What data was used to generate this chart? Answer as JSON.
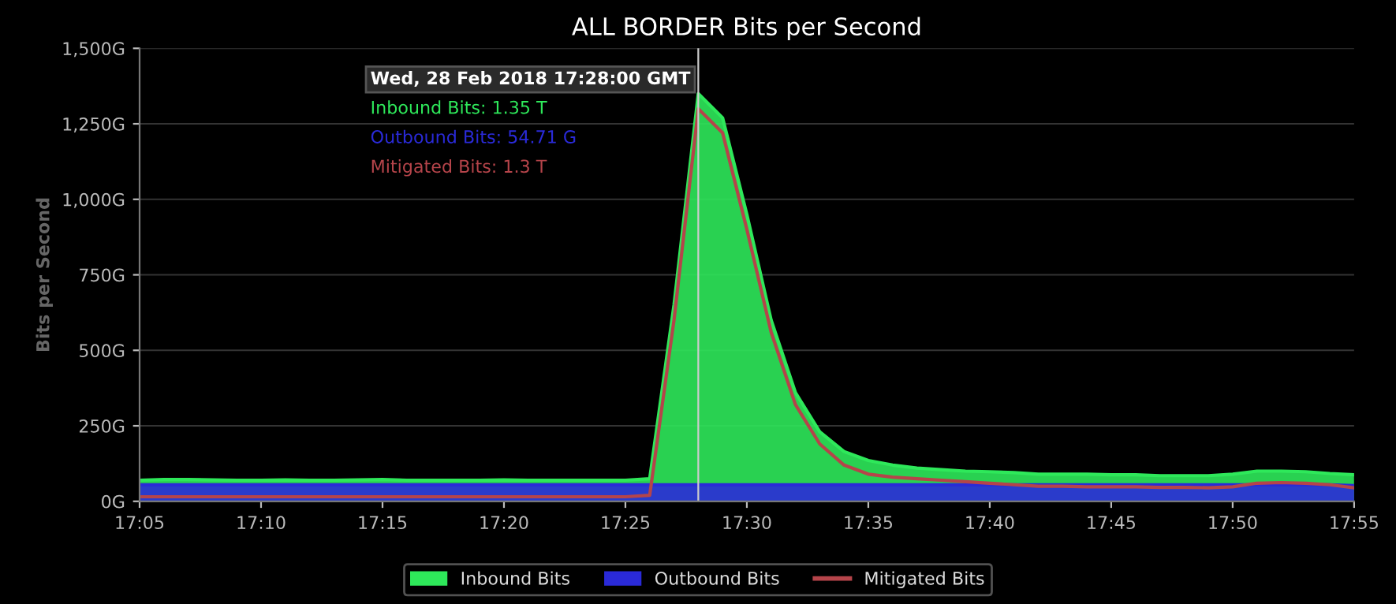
{
  "chart_data": {
    "type": "area",
    "title": "ALL BORDER Bits per Second",
    "ylabel": "Bits per Second",
    "x": [
      "2018-02-28T17:05",
      "2018-02-28T17:06",
      "2018-02-28T17:07",
      "2018-02-28T17:08",
      "2018-02-28T17:09",
      "2018-02-28T17:10",
      "2018-02-28T17:11",
      "2018-02-28T17:12",
      "2018-02-28T17:13",
      "2018-02-28T17:14",
      "2018-02-28T17:15",
      "2018-02-28T17:16",
      "2018-02-28T17:17",
      "2018-02-28T17:18",
      "2018-02-28T17:19",
      "2018-02-28T17:20",
      "2018-02-28T17:21",
      "2018-02-28T17:22",
      "2018-02-28T17:23",
      "2018-02-28T17:24",
      "2018-02-28T17:25",
      "2018-02-28T17:26",
      "2018-02-28T17:27",
      "2018-02-28T17:28",
      "2018-02-28T17:29",
      "2018-02-28T17:30",
      "2018-02-28T17:31",
      "2018-02-28T17:32",
      "2018-02-28T17:33",
      "2018-02-28T17:34",
      "2018-02-28T17:35",
      "2018-02-28T17:36",
      "2018-02-28T17:37",
      "2018-02-28T17:38",
      "2018-02-28T17:39",
      "2018-02-28T17:40",
      "2018-02-28T17:41",
      "2018-02-28T17:42",
      "2018-02-28T17:43",
      "2018-02-28T17:44",
      "2018-02-28T17:45",
      "2018-02-28T17:46",
      "2018-02-28T17:47",
      "2018-02-28T17:48",
      "2018-02-28T17:49",
      "2018-02-28T17:50",
      "2018-02-28T17:51",
      "2018-02-28T17:52",
      "2018-02-28T17:53",
      "2018-02-28T17:54",
      "2018-02-28T17:55"
    ],
    "series": [
      {
        "name": "Inbound Bits",
        "color": "#2ee85a",
        "values": [
          70,
          72,
          72,
          71,
          70,
          70,
          71,
          70,
          70,
          71,
          72,
          70,
          70,
          70,
          70,
          71,
          70,
          70,
          70,
          70,
          70,
          75,
          650,
          1350,
          1270,
          950,
          600,
          360,
          230,
          165,
          135,
          120,
          110,
          105,
          100,
          98,
          95,
          90,
          90,
          90,
          88,
          88,
          85,
          85,
          85,
          90,
          100,
          100,
          98,
          92,
          88
        ]
      },
      {
        "name": "Outbound Bits",
        "color": "#2a2ad8",
        "values": [
          55,
          55,
          55,
          55,
          55,
          55,
          55,
          55,
          55,
          55,
          55,
          55,
          55,
          55,
          55,
          55,
          55,
          55,
          55,
          55,
          55,
          55,
          55,
          55,
          55,
          55,
          55,
          55,
          55,
          55,
          55,
          55,
          55,
          55,
          55,
          55,
          55,
          55,
          55,
          55,
          55,
          55,
          55,
          55,
          55,
          55,
          55,
          55,
          55,
          55,
          52
        ]
      },
      {
        "name": "Mitigated Bits",
        "color": "#b5444a",
        "type": "line",
        "values": [
          15,
          15,
          15,
          15,
          15,
          15,
          15,
          15,
          15,
          15,
          15,
          15,
          15,
          15,
          15,
          15,
          15,
          15,
          15,
          15,
          15,
          20,
          600,
          1300,
          1220,
          900,
          560,
          320,
          190,
          120,
          90,
          80,
          75,
          70,
          65,
          60,
          55,
          50,
          50,
          48,
          48,
          48,
          46,
          46,
          45,
          48,
          60,
          62,
          60,
          55,
          45
        ]
      }
    ],
    "xlim": [
      "2018-02-28T17:05",
      "2018-02-28T17:55"
    ],
    "xticks": [
      {
        "value": "2018-02-28T17:05",
        "label": "17:05"
      },
      {
        "value": "2018-02-28T17:10",
        "label": "17:10"
      },
      {
        "value": "2018-02-28T17:15",
        "label": "17:15"
      },
      {
        "value": "2018-02-28T17:20",
        "label": "17:20"
      },
      {
        "value": "2018-02-28T17:25",
        "label": "17:25"
      },
      {
        "value": "2018-02-28T17:30",
        "label": "17:30"
      },
      {
        "value": "2018-02-28T17:35",
        "label": "17:35"
      },
      {
        "value": "2018-02-28T17:40",
        "label": "17:40"
      },
      {
        "value": "2018-02-28T17:45",
        "label": "17:45"
      },
      {
        "value": "2018-02-28T17:50",
        "label": "17:50"
      },
      {
        "value": "2018-02-28T17:55",
        "label": "17:55"
      }
    ],
    "ylim": [
      0,
      1500
    ],
    "yticks": [
      {
        "value": 0,
        "label": "0G"
      },
      {
        "value": 250,
        "label": "250G"
      },
      {
        "value": 500,
        "label": "500G"
      },
      {
        "value": 750,
        "label": "750G"
      },
      {
        "value": 1000,
        "label": "1,000G"
      },
      {
        "value": 1250,
        "label": "1,250G"
      },
      {
        "value": 1500,
        "label": "1,500G"
      }
    ],
    "ref_lines": [
      {
        "axis": "x",
        "value": "2018-02-28T17:28",
        "color": "#cccccc"
      }
    ],
    "annotations": [
      "Wed, 28 Feb 2018 17:28:00 GMT",
      "Inbound Bits: 1.35 T",
      "Outbound Bits: 54.71 G",
      "Mitigated Bits: 1.3 T"
    ],
    "grid": "y",
    "legend": "bottom",
    "marker": "none",
    "line_style": "solid"
  }
}
